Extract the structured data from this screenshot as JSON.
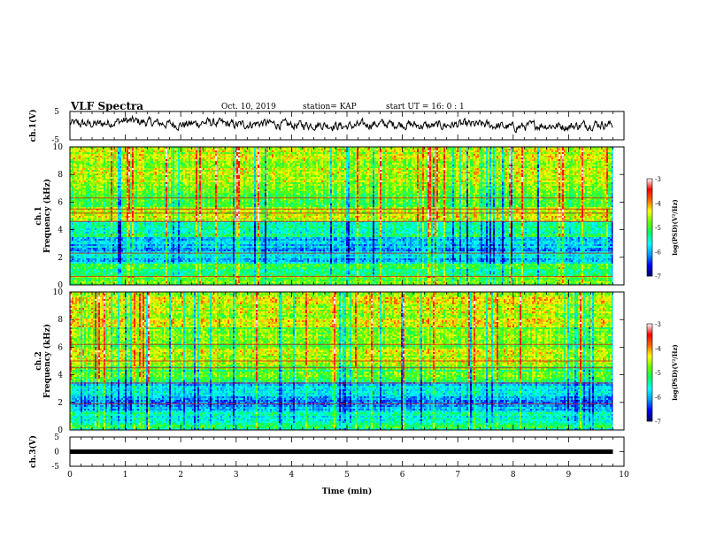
{
  "header": {
    "title": "VLF Spectra",
    "date": "Oct. 10, 2019",
    "station": "station= KAP",
    "start": "start  UT =   16: 0  : 1"
  },
  "chart_data": [
    {
      "type": "line",
      "panel": "ch1-waveform",
      "ylabel": "ch.1(V)",
      "ylim": [
        -5,
        5
      ],
      "yticks": [
        "5",
        "-5"
      ],
      "xlim": [
        0,
        10
      ],
      "x_end": 9.8,
      "series": [
        {
          "x": [
            0.0,
            0.5,
            1.0,
            1.5,
            2.0,
            2.5,
            3.0,
            3.5,
            4.0,
            4.5,
            5.0,
            5.5,
            6.0,
            6.5,
            7.0,
            7.5,
            8.0,
            8.5,
            9.0,
            9.5,
            9.8
          ],
          "values": [
            0.8,
            0.5,
            1.8,
            1.0,
            0.3,
            1.2,
            0.2,
            0.9,
            0.1,
            0.4,
            -0.3,
            0.6,
            0.5,
            -0.2,
            0.4,
            0.3,
            -0.6,
            0.2,
            -0.3,
            0.6,
            0.4
          ]
        }
      ]
    },
    {
      "type": "heatmap",
      "panel": "ch1-spectrogram",
      "ylabel": [
        "ch.1",
        "Frequency (kHz)"
      ],
      "ylim": [
        0,
        10
      ],
      "yticks": [
        "0",
        "2",
        "4",
        "6",
        "8",
        "10"
      ],
      "xlim": [
        0,
        10
      ],
      "x_end": 9.8,
      "colorbar": {
        "label": "log(PSD)(V²/Hz)",
        "range": [
          -7,
          -3
        ],
        "ticks": [
          "-3",
          "-4",
          "-5",
          "-6",
          "-7"
        ]
      },
      "freq_bands_khz": [
        {
          "from": 0.0,
          "to": 0.6,
          "value": -4.9
        },
        {
          "from": 0.6,
          "to": 1.5,
          "value": -5.2
        },
        {
          "from": 1.5,
          "to": 2.3,
          "value": -5.8
        },
        {
          "from": 2.3,
          "to": 3.5,
          "value": -6.0
        },
        {
          "from": 3.5,
          "to": 4.6,
          "value": -5.4
        },
        {
          "from": 4.6,
          "to": 5.6,
          "value": -4.5
        },
        {
          "from": 5.6,
          "to": 7.5,
          "value": -4.9
        },
        {
          "from": 7.5,
          "to": 10.0,
          "value": -4.6
        }
      ],
      "tone_lines_khz": [
        0.6,
        2.3,
        4.6,
        5.2,
        5.5,
        6.3
      ]
    },
    {
      "type": "heatmap",
      "panel": "ch2-spectrogram",
      "ylabel": [
        "ch.2",
        "Frequency (kHz)"
      ],
      "ylim": [
        0,
        10
      ],
      "yticks": [
        "0",
        "2",
        "4",
        "6",
        "8",
        "10"
      ],
      "xlim": [
        0,
        10
      ],
      "x_end": 9.8,
      "colorbar": {
        "label": "log(PSD)(V²/Hz)",
        "range": [
          -7,
          -3
        ],
        "ticks": [
          "-3",
          "-4",
          "-5",
          "-6",
          "-7"
        ]
      },
      "freq_bands_khz": [
        {
          "from": 0.0,
          "to": 0.6,
          "value": -5.3
        },
        {
          "from": 0.6,
          "to": 1.4,
          "value": -5.6
        },
        {
          "from": 1.4,
          "to": 2.2,
          "value": -6.1
        },
        {
          "from": 2.2,
          "to": 3.5,
          "value": -5.8
        },
        {
          "from": 3.5,
          "to": 4.6,
          "value": -5.0
        },
        {
          "from": 4.6,
          "to": 6.0,
          "value": -4.6
        },
        {
          "from": 6.0,
          "to": 7.5,
          "value": -4.8
        },
        {
          "from": 7.5,
          "to": 10.0,
          "value": -4.5
        }
      ],
      "tone_lines_khz": [
        1.9,
        3.4,
        4.5,
        5.0,
        6.2
      ]
    },
    {
      "type": "line",
      "panel": "ch3-waveform",
      "ylabel": "ch.3(V)",
      "ylim": [
        -5,
        5
      ],
      "yticks": [
        "5",
        "0",
        "-5"
      ],
      "xlabel": "Time (min)",
      "xlim": [
        0,
        10
      ],
      "xticks": [
        "0",
        "1",
        "2",
        "3",
        "4",
        "5",
        "6",
        "7",
        "8",
        "9",
        "10"
      ],
      "x_end": 9.8,
      "series": [
        {
          "x": [
            0,
            9.8
          ],
          "values": [
            0,
            0
          ]
        }
      ]
    }
  ],
  "colors": {
    "colormap": [
      "#000066",
      "#0000ff",
      "#0099ff",
      "#00ffff",
      "#00ff66",
      "#66ff00",
      "#ffff00",
      "#ff6600",
      "#ff0000",
      "#ffffff"
    ],
    "axis": "#000000",
    "trace": "#000000"
  }
}
